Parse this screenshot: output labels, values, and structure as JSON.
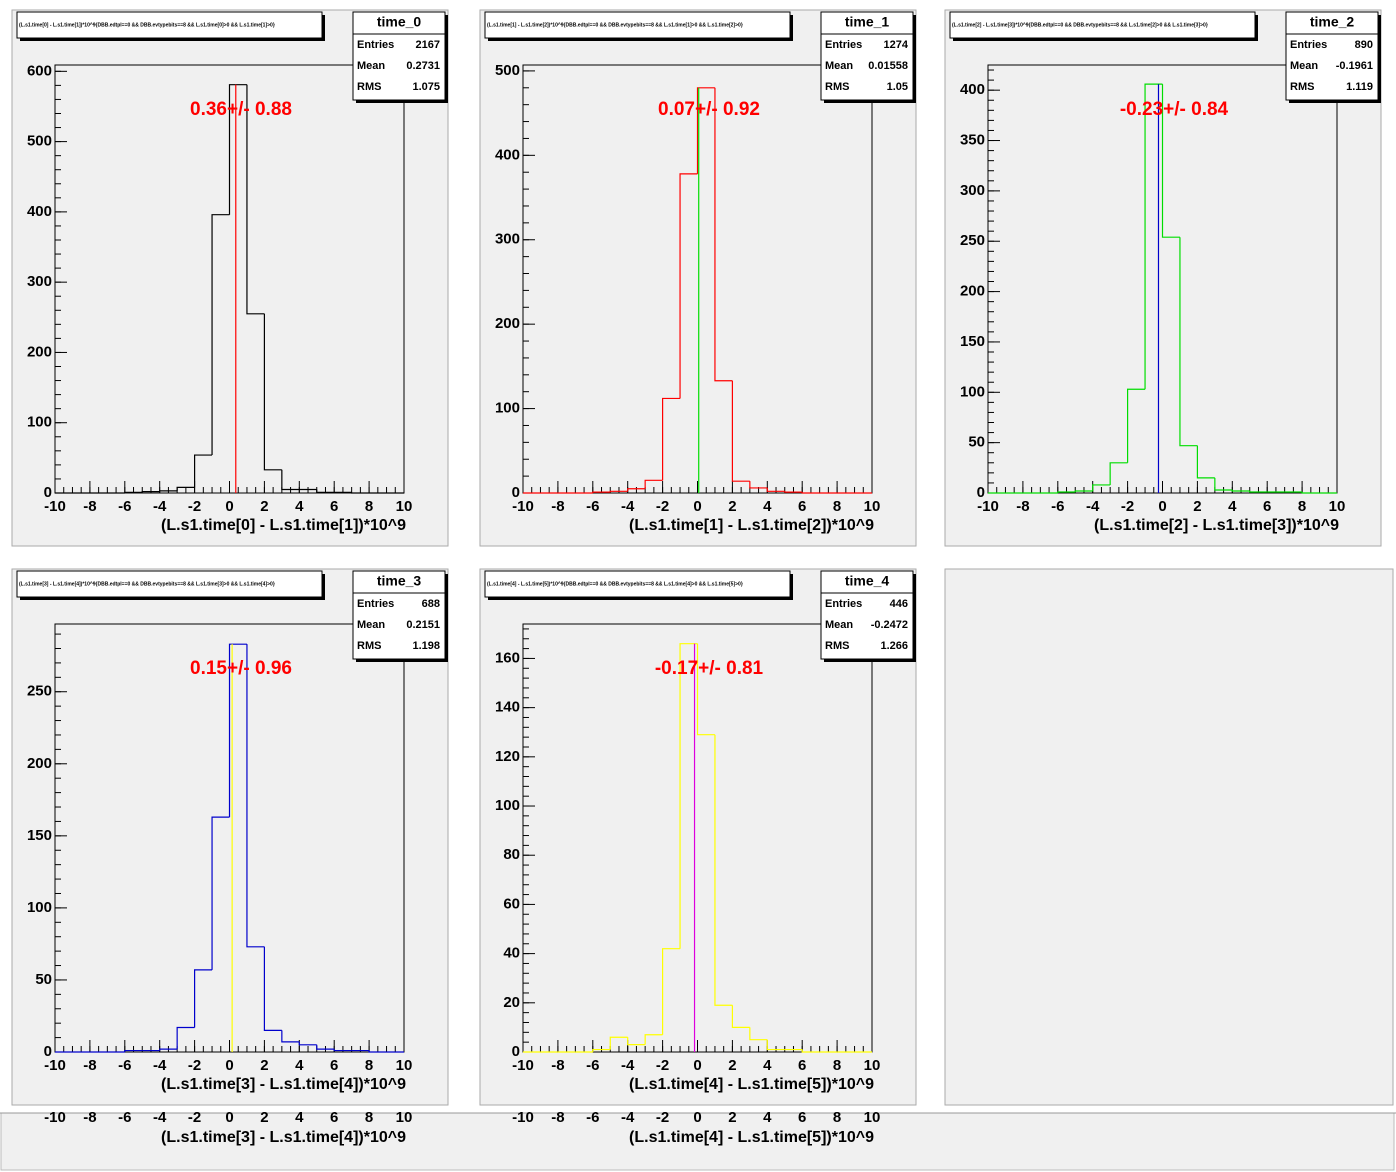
{
  "chart_data": [
    {
      "type": "histogram",
      "title": "(L.s1.time[0] - L.s1.time[1])*10^9{DBB.edtpl==0 && DBB.evtypebits==8 && L.s1.time[0]>0 && L.s1.time[1]>0}",
      "stats": {
        "name": "time_0",
        "labels": [
          "Entries",
          "Mean",
          "RMS"
        ],
        "values": [
          2167,
          0.2731,
          1.075
        ]
      },
      "annotation": "0.36+/- 0.88",
      "xlabel": "(L.s1.time[0] - L.s1.time[1])*10^9",
      "bins": [
        -10,
        -9,
        -8,
        -7,
        -6,
        -5,
        -4,
        -3,
        -2,
        -1,
        0,
        1,
        2,
        3,
        4,
        5,
        6,
        7,
        8,
        9,
        10
      ],
      "counts": [
        0,
        0,
        0,
        0,
        1,
        2,
        3,
        8,
        54,
        396,
        581,
        255,
        33,
        5,
        5,
        1,
        1,
        0,
        0,
        0
      ],
      "color": "#000000",
      "marker": {
        "x": 0.36,
        "color": "#ff0000"
      },
      "xlim": [
        -10,
        10
      ],
      "xticks": [
        -10,
        -8,
        -6,
        -4,
        -2,
        0,
        2,
        4,
        6,
        8,
        10
      ],
      "ylim": [
        0,
        609
      ],
      "yticks": [
        0,
        100,
        200,
        300,
        400,
        500,
        600
      ]
    },
    {
      "type": "histogram",
      "title": "(L.s1.time[1] - L.s1.time[2])*10^9{DBB.edtpl==0 && DBB.evtypebits==8 && L.s1.time[1]>0 && L.s1.time[2]>0}",
      "stats": {
        "name": "time_1",
        "labels": [
          "Entries",
          "Mean",
          "RMS"
        ],
        "values": [
          1274,
          0.01558,
          1.05
        ]
      },
      "annotation": "0.07+/- 0.92",
      "xlabel": "(L.s1.time[1] - L.s1.time[2])*10^9",
      "bins": [
        -10,
        -9,
        -8,
        -7,
        -6,
        -5,
        -4,
        -3,
        -2,
        -1,
        0,
        1,
        2,
        3,
        4,
        5,
        6,
        7,
        8,
        9,
        10
      ],
      "counts": [
        0,
        0,
        0,
        0,
        1,
        2,
        5,
        15,
        112,
        378,
        480,
        133,
        14,
        6,
        2,
        1,
        0,
        0,
        0,
        0
      ],
      "color": "#ff0000",
      "marker": {
        "x": 0.07,
        "color": "#00dd00"
      },
      "xlim": [
        -10,
        10
      ],
      "xticks": [
        -10,
        -8,
        -6,
        -4,
        -2,
        0,
        2,
        4,
        6,
        8,
        10
      ],
      "ylim": [
        0,
        507
      ],
      "yticks": [
        0,
        100,
        200,
        300,
        400,
        500
      ]
    },
    {
      "type": "histogram",
      "title": "(L.s1.time[2] - L.s1.time[3])*10^9{DBB.edtpl==0 && DBB.evtypebits==8 && L.s1.time[2]>0 && L.s1.time[3]>0}",
      "stats": {
        "name": "time_2",
        "labels": [
          "Entries",
          "Mean",
          "RMS"
        ],
        "values": [
          890,
          -0.1961,
          1.119
        ]
      },
      "annotation": "-0.23+/- 0.84",
      "xlabel": "(L.s1.time[2] - L.s1.time[3])*10^9",
      "bins": [
        -10,
        -9,
        -8,
        -7,
        -6,
        -5,
        -4,
        -3,
        -2,
        -1,
        0,
        1,
        2,
        3,
        4,
        5,
        6,
        7,
        8,
        9,
        10
      ],
      "counts": [
        0,
        0,
        0,
        0,
        1,
        2,
        8,
        30,
        103,
        406,
        254,
        47,
        15,
        3,
        2,
        1,
        1,
        1,
        0,
        0
      ],
      "color": "#00dd00",
      "marker": {
        "x": -0.23,
        "color": "#0000cc"
      },
      "xlim": [
        -10,
        10
      ],
      "xticks": [
        -10,
        -8,
        -6,
        -4,
        -2,
        0,
        2,
        4,
        6,
        8,
        10
      ],
      "ylim": [
        0,
        425
      ],
      "yticks": [
        0,
        50,
        100,
        150,
        200,
        250,
        300,
        350,
        400
      ]
    },
    {
      "type": "histogram",
      "title": "(L.s1.time[3] - L.s1.time[4])*10^9{DBB.edtpl==0 && DBB.evtypebits==8 && L.s1.time[3]>0 && L.s1.time[4]>0}",
      "stats": {
        "name": "time_3",
        "labels": [
          "Entries",
          "Mean",
          "RMS"
        ],
        "values": [
          688,
          0.2151,
          1.198
        ]
      },
      "annotation": "0.15+/- 0.96",
      "xlabel": "(L.s1.time[3] - L.s1.time[4])*10^9",
      "bins": [
        -10,
        -9,
        -8,
        -7,
        -6,
        -5,
        -4,
        -3,
        -2,
        -1,
        0,
        1,
        2,
        3,
        4,
        5,
        6,
        7,
        8,
        9,
        10
      ],
      "counts": [
        0,
        0,
        0,
        0,
        1,
        1,
        2,
        17,
        57,
        163,
        283,
        73,
        15,
        7,
        5,
        2,
        1,
        1,
        0,
        0
      ],
      "color": "#0000cc",
      "marker": {
        "x": 0.15,
        "color": "#ffff00"
      },
      "xlim": [
        -10,
        10
      ],
      "xticks": [
        -10,
        -8,
        -6,
        -4,
        -2,
        0,
        2,
        4,
        6,
        8,
        10
      ],
      "ylim": [
        0,
        297
      ],
      "yticks": [
        0,
        50,
        100,
        150,
        200,
        250
      ]
    },
    {
      "type": "histogram",
      "title": "(L.s1.time[4] - L.s1.time[5])*10^9{DBB.edtpl==0 && DBB.evtypebits==8 && L.s1.time[4]>0 && L.s1.time[5]>0}",
      "stats": {
        "name": "time_4",
        "labels": [
          "Entries",
          "Mean",
          "RMS"
        ],
        "values": [
          446,
          -0.2472,
          1.266
        ]
      },
      "annotation": "-0.17+/- 0.81",
      "xlabel": "(L.s1.time[4] - L.s1.time[5])*10^9",
      "bins": [
        -10,
        -9,
        -8,
        -7,
        -6,
        -5,
        -4,
        -3,
        -2,
        -1,
        0,
        1,
        2,
        3,
        4,
        5,
        6,
        7,
        8,
        9,
        10
      ],
      "counts": [
        0,
        0,
        0,
        0,
        1,
        6,
        3,
        7,
        42,
        166,
        129,
        19,
        10,
        5,
        1,
        1,
        0,
        0,
        0,
        0
      ],
      "color": "#ffff00",
      "marker": {
        "x": -0.17,
        "color": "#dd00dd"
      },
      "xlim": [
        -10,
        10
      ],
      "xticks": [
        -10,
        -8,
        -6,
        -4,
        -2,
        0,
        2,
        4,
        6,
        8,
        10
      ],
      "ylim": [
        0,
        174
      ],
      "yticks": [
        0,
        20,
        40,
        60,
        80,
        100,
        120,
        140,
        160
      ]
    }
  ]
}
